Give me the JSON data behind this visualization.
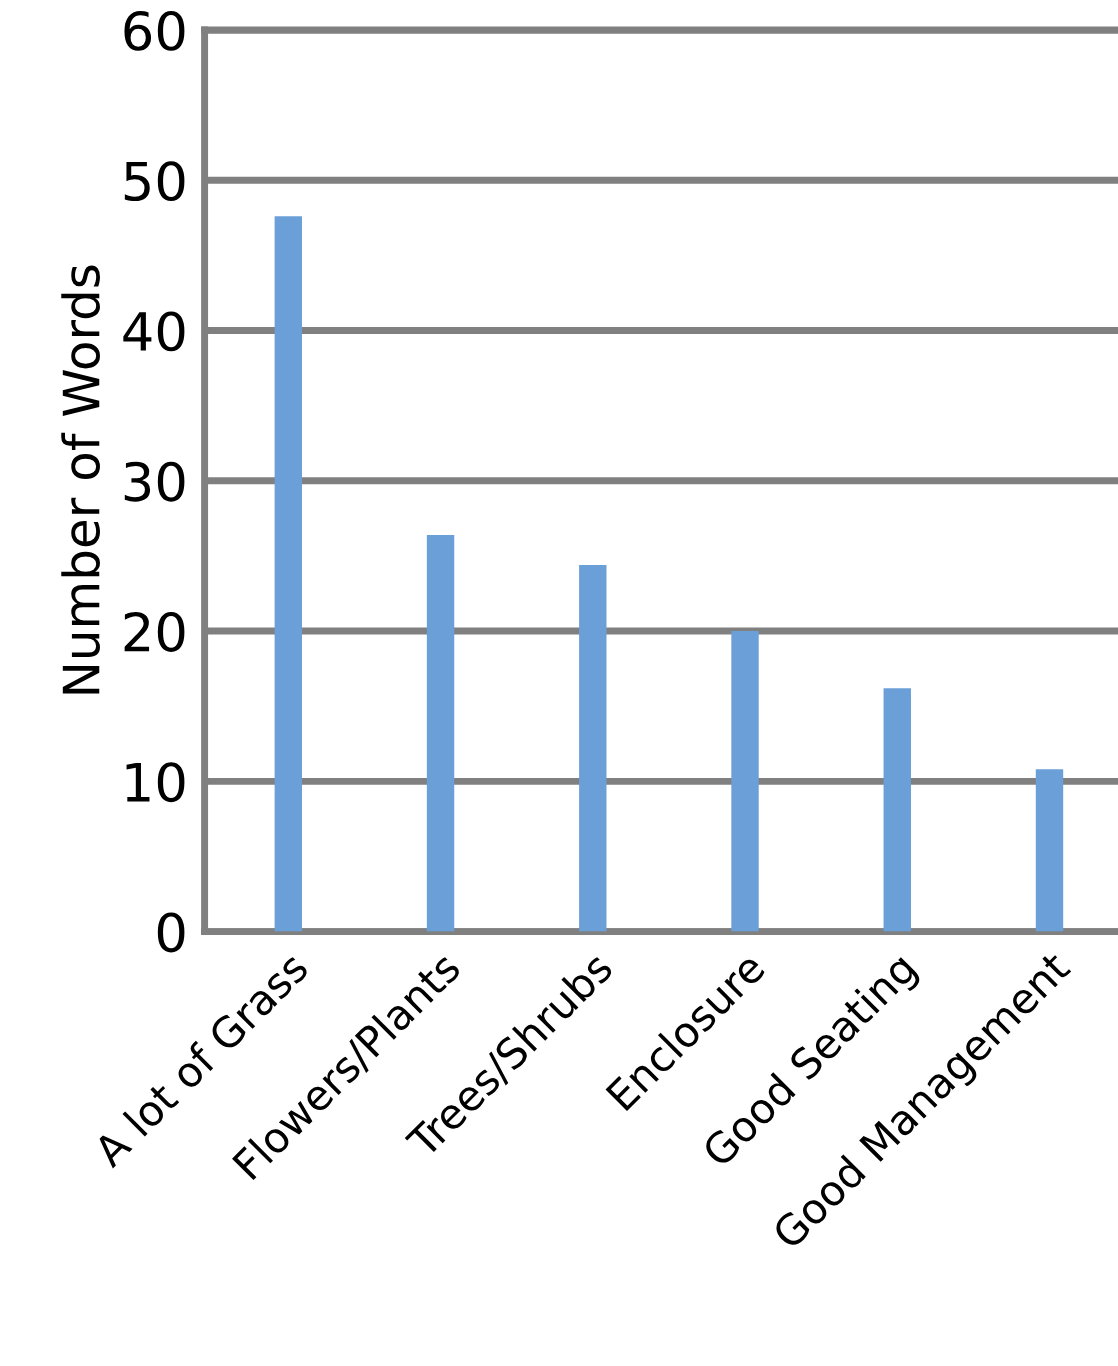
{
  "chart_data": {
    "type": "bar",
    "ylabel": "Number of Words",
    "categories": [
      "A lot of Grass",
      "Flowers/Plants",
      "Trees/Shrubs",
      "Enclosure",
      "Good Seating",
      "Good Management"
    ],
    "values": [
      47.6,
      26.4,
      24.4,
      20.0,
      16.2,
      10.8
    ],
    "color": "#6a9fd8",
    "ylim": [
      0,
      60
    ],
    "yticks": [
      0,
      10,
      20,
      30,
      40,
      50,
      60
    ],
    "grid": "y"
  }
}
